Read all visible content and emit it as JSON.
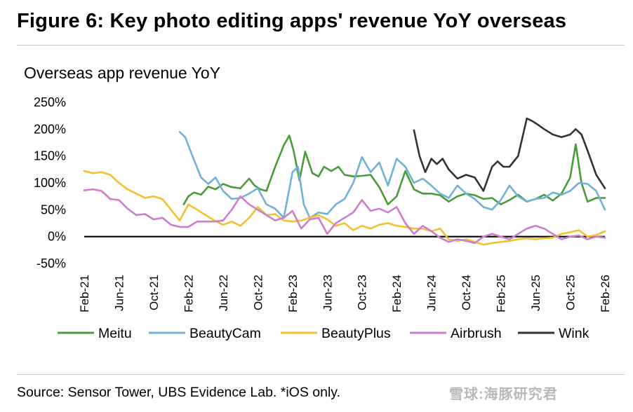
{
  "figure_title": "Figure 6: Key photo editing apps' revenue YoY overseas",
  "source_note": "Source: Sensor Tower, UBS Evidence Lab. *iOS only.",
  "watermark": "雪球:海豚研究君",
  "chart_data": {
    "type": "line",
    "title": "Overseas app revenue YoY",
    "xlabel": "",
    "ylabel": "",
    "x_range": [
      "2021-02",
      "2026-02"
    ],
    "x_ticks": [
      "Feb-21",
      "Jun-21",
      "Oct-21",
      "Feb-22",
      "Jun-22",
      "Oct-22",
      "Feb-23",
      "Jun-23",
      "Oct-23",
      "Feb-24",
      "Jun-24",
      "Oct-24",
      "Feb-25",
      "Jun-25",
      "Oct-25",
      "Feb-26"
    ],
    "y_ticks": [
      -50,
      0,
      50,
      100,
      150,
      200,
      250
    ],
    "y_tick_labels": [
      "-50%",
      "0%",
      "50%",
      "100%",
      "150%",
      "200%",
      "250%"
    ],
    "ylim": [
      -50,
      250
    ],
    "y_unit": "%",
    "zero_line": true,
    "grid": false,
    "legend_position": "bottom",
    "series": [
      {
        "name": "Meitu",
        "color": "#4a9c3a",
        "points": [
          [
            "2022-01-15",
            60
          ],
          [
            "2022-02-01",
            75
          ],
          [
            "2022-02-20",
            82
          ],
          [
            "2022-03-15",
            78
          ],
          [
            "2022-04-10",
            93
          ],
          [
            "2022-05-05",
            88
          ],
          [
            "2022-06-01",
            98
          ],
          [
            "2022-07-01",
            92
          ],
          [
            "2022-08-01",
            90
          ],
          [
            "2022-09-01",
            108
          ],
          [
            "2022-09-20",
            95
          ],
          [
            "2022-10-10",
            88
          ],
          [
            "2022-11-01",
            85
          ],
          [
            "2022-12-01",
            130
          ],
          [
            "2023-01-01",
            170
          ],
          [
            "2023-01-20",
            188
          ],
          [
            "2023-02-05",
            160
          ],
          [
            "2023-02-25",
            105
          ],
          [
            "2023-03-15",
            158
          ],
          [
            "2023-04-10",
            118
          ],
          [
            "2023-05-01",
            112
          ],
          [
            "2023-05-20",
            130
          ],
          [
            "2023-06-15",
            122
          ],
          [
            "2023-07-10",
            130
          ],
          [
            "2023-08-01",
            115
          ],
          [
            "2023-09-01",
            112
          ],
          [
            "2023-10-01",
            113
          ],
          [
            "2023-11-01",
            115
          ],
          [
            "2023-12-01",
            92
          ],
          [
            "2024-01-01",
            60
          ],
          [
            "2024-02-01",
            75
          ],
          [
            "2024-03-01",
            122
          ],
          [
            "2024-04-01",
            88
          ],
          [
            "2024-05-01",
            80
          ],
          [
            "2024-06-01",
            80
          ],
          [
            "2024-07-01",
            77
          ],
          [
            "2024-08-01",
            65
          ],
          [
            "2024-09-01",
            75
          ],
          [
            "2024-10-01",
            80
          ],
          [
            "2024-11-01",
            77
          ],
          [
            "2024-12-01",
            70
          ],
          [
            "2025-01-01",
            72
          ],
          [
            "2025-02-01",
            60
          ],
          [
            "2025-03-01",
            68
          ],
          [
            "2025-04-01",
            78
          ],
          [
            "2025-05-01",
            65
          ],
          [
            "2025-06-01",
            70
          ],
          [
            "2025-07-01",
            78
          ],
          [
            "2025-08-01",
            67
          ],
          [
            "2025-09-01",
            80
          ],
          [
            "2025-10-01",
            110
          ],
          [
            "2025-10-20",
            172
          ],
          [
            "2025-11-10",
            100
          ],
          [
            "2025-12-01",
            65
          ],
          [
            "2026-01-01",
            72
          ],
          [
            "2026-02-01",
            72
          ]
        ]
      },
      {
        "name": "BeautyCam",
        "color": "#6fb2d6",
        "points": [
          [
            "2022-01-01",
            195
          ],
          [
            "2022-01-20",
            185
          ],
          [
            "2022-02-15",
            150
          ],
          [
            "2022-03-15",
            110
          ],
          [
            "2022-04-10",
            98
          ],
          [
            "2022-05-05",
            110
          ],
          [
            "2022-06-01",
            85
          ],
          [
            "2022-07-01",
            70
          ],
          [
            "2022-08-01",
            72
          ],
          [
            "2022-09-01",
            80
          ],
          [
            "2022-10-01",
            90
          ],
          [
            "2022-11-01",
            60
          ],
          [
            "2022-12-01",
            52
          ],
          [
            "2023-01-01",
            35
          ],
          [
            "2023-02-01",
            120
          ],
          [
            "2023-02-20",
            130
          ],
          [
            "2023-03-10",
            60
          ],
          [
            "2023-04-01",
            35
          ],
          [
            "2023-05-01",
            45
          ],
          [
            "2023-06-01",
            42
          ],
          [
            "2023-07-01",
            60
          ],
          [
            "2023-08-01",
            70
          ],
          [
            "2023-09-01",
            100
          ],
          [
            "2023-10-01",
            148
          ],
          [
            "2023-11-01",
            120
          ],
          [
            "2023-12-01",
            138
          ],
          [
            "2024-01-01",
            95
          ],
          [
            "2024-02-01",
            145
          ],
          [
            "2024-03-01",
            130
          ],
          [
            "2024-04-01",
            100
          ],
          [
            "2024-05-01",
            108
          ],
          [
            "2024-06-01",
            95
          ],
          [
            "2024-07-01",
            80
          ],
          [
            "2024-08-01",
            72
          ],
          [
            "2024-09-01",
            95
          ],
          [
            "2024-10-01",
            80
          ],
          [
            "2024-11-01",
            70
          ],
          [
            "2024-12-01",
            55
          ],
          [
            "2025-01-01",
            50
          ],
          [
            "2025-02-01",
            68
          ],
          [
            "2025-03-01",
            95
          ],
          [
            "2025-04-01",
            75
          ],
          [
            "2025-05-01",
            65
          ],
          [
            "2025-06-01",
            70
          ],
          [
            "2025-07-01",
            72
          ],
          [
            "2025-08-01",
            82
          ],
          [
            "2025-09-01",
            78
          ],
          [
            "2025-10-01",
            85
          ],
          [
            "2025-11-01",
            100
          ],
          [
            "2025-12-01",
            98
          ],
          [
            "2026-01-01",
            85
          ],
          [
            "2026-02-01",
            50
          ]
        ]
      },
      {
        "name": "BeautyPlus",
        "color": "#f2c12e",
        "points": [
          [
            "2021-02-01",
            122
          ],
          [
            "2021-03-01",
            118
          ],
          [
            "2021-04-01",
            120
          ],
          [
            "2021-05-01",
            115
          ],
          [
            "2021-06-01",
            100
          ],
          [
            "2021-07-01",
            88
          ],
          [
            "2021-08-01",
            80
          ],
          [
            "2021-09-01",
            72
          ],
          [
            "2021-10-01",
            75
          ],
          [
            "2021-11-01",
            70
          ],
          [
            "2021-12-01",
            50
          ],
          [
            "2022-01-01",
            30
          ],
          [
            "2022-02-01",
            60
          ],
          [
            "2022-03-01",
            50
          ],
          [
            "2022-04-01",
            40
          ],
          [
            "2022-05-01",
            30
          ],
          [
            "2022-06-01",
            22
          ],
          [
            "2022-07-01",
            28
          ],
          [
            "2022-08-01",
            20
          ],
          [
            "2022-09-01",
            35
          ],
          [
            "2022-10-01",
            55
          ],
          [
            "2022-11-01",
            40
          ],
          [
            "2022-12-01",
            42
          ],
          [
            "2023-01-01",
            30
          ],
          [
            "2023-02-01",
            28
          ],
          [
            "2023-03-01",
            30
          ],
          [
            "2023-04-01",
            35
          ],
          [
            "2023-05-01",
            40
          ],
          [
            "2023-06-01",
            32
          ],
          [
            "2023-07-01",
            20
          ],
          [
            "2023-08-01",
            25
          ],
          [
            "2023-09-01",
            12
          ],
          [
            "2023-10-01",
            20
          ],
          [
            "2023-11-01",
            15
          ],
          [
            "2023-12-01",
            22
          ],
          [
            "2024-01-01",
            25
          ],
          [
            "2024-02-01",
            20
          ],
          [
            "2024-03-01",
            18
          ],
          [
            "2024-04-01",
            15
          ],
          [
            "2024-05-01",
            15
          ],
          [
            "2024-06-01",
            10
          ],
          [
            "2024-07-01",
            15
          ],
          [
            "2024-08-01",
            -5
          ],
          [
            "2024-09-01",
            -8
          ],
          [
            "2024-10-01",
            -5
          ],
          [
            "2024-11-01",
            -10
          ],
          [
            "2024-12-01",
            -15
          ],
          [
            "2025-01-01",
            -12
          ],
          [
            "2025-02-01",
            -10
          ],
          [
            "2025-03-01",
            -8
          ],
          [
            "2025-04-01",
            -5
          ],
          [
            "2025-05-01",
            -3
          ],
          [
            "2025-06-01",
            -5
          ],
          [
            "2025-07-01",
            -3
          ],
          [
            "2025-08-01",
            -2
          ],
          [
            "2025-09-01",
            5
          ],
          [
            "2025-10-01",
            8
          ],
          [
            "2025-11-01",
            12
          ],
          [
            "2025-12-01",
            0
          ],
          [
            "2026-01-01",
            3
          ],
          [
            "2026-02-01",
            10
          ]
        ]
      },
      {
        "name": "Airbrush",
        "color": "#cc7ecc",
        "points": [
          [
            "2021-02-01",
            86
          ],
          [
            "2021-03-01",
            88
          ],
          [
            "2021-04-01",
            85
          ],
          [
            "2021-05-01",
            70
          ],
          [
            "2021-06-01",
            68
          ],
          [
            "2021-07-01",
            52
          ],
          [
            "2021-08-01",
            40
          ],
          [
            "2021-09-01",
            42
          ],
          [
            "2021-10-01",
            32
          ],
          [
            "2021-11-01",
            35
          ],
          [
            "2021-12-01",
            22
          ],
          [
            "2022-01-01",
            18
          ],
          [
            "2022-02-01",
            18
          ],
          [
            "2022-03-01",
            28
          ],
          [
            "2022-04-01",
            28
          ],
          [
            "2022-05-01",
            28
          ],
          [
            "2022-06-01",
            30
          ],
          [
            "2022-07-01",
            50
          ],
          [
            "2022-08-01",
            75
          ],
          [
            "2022-09-01",
            60
          ],
          [
            "2022-10-01",
            50
          ],
          [
            "2022-11-01",
            40
          ],
          [
            "2022-12-01",
            30
          ],
          [
            "2023-01-01",
            35
          ],
          [
            "2023-02-01",
            48
          ],
          [
            "2023-03-01",
            15
          ],
          [
            "2023-04-01",
            32
          ],
          [
            "2023-05-01",
            35
          ],
          [
            "2023-06-01",
            5
          ],
          [
            "2023-07-01",
            25
          ],
          [
            "2023-08-01",
            35
          ],
          [
            "2023-09-01",
            45
          ],
          [
            "2023-10-01",
            68
          ],
          [
            "2023-11-01",
            48
          ],
          [
            "2023-12-01",
            52
          ],
          [
            "2024-01-01",
            45
          ],
          [
            "2024-02-01",
            55
          ],
          [
            "2024-03-01",
            25
          ],
          [
            "2024-04-01",
            5
          ],
          [
            "2024-05-01",
            20
          ],
          [
            "2024-06-01",
            10
          ],
          [
            "2024-07-01",
            -2
          ],
          [
            "2024-08-01",
            -10
          ],
          [
            "2024-09-01",
            -5
          ],
          [
            "2024-10-01",
            -8
          ],
          [
            "2024-11-01",
            -12
          ],
          [
            "2024-12-01",
            0
          ],
          [
            "2025-01-01",
            5
          ],
          [
            "2025-02-01",
            0
          ],
          [
            "2025-03-01",
            -5
          ],
          [
            "2025-04-01",
            5
          ],
          [
            "2025-05-01",
            15
          ],
          [
            "2025-06-01",
            20
          ],
          [
            "2025-07-01",
            15
          ],
          [
            "2025-08-01",
            5
          ],
          [
            "2025-09-01",
            -5
          ],
          [
            "2025-10-01",
            0
          ],
          [
            "2025-11-01",
            2
          ],
          [
            "2025-12-01",
            -5
          ],
          [
            "2026-01-01",
            0
          ],
          [
            "2026-02-01",
            -2
          ]
        ]
      },
      {
        "name": "Wink",
        "color": "#333333",
        "points": [
          [
            "2024-04-01",
            198
          ],
          [
            "2024-04-20",
            150
          ],
          [
            "2024-05-10",
            120
          ],
          [
            "2024-06-01",
            145
          ],
          [
            "2024-06-20",
            135
          ],
          [
            "2024-07-10",
            145
          ],
          [
            "2024-08-01",
            125
          ],
          [
            "2024-09-01",
            108
          ],
          [
            "2024-10-01",
            115
          ],
          [
            "2024-11-01",
            110
          ],
          [
            "2024-12-01",
            85
          ],
          [
            "2025-01-01",
            130
          ],
          [
            "2025-01-20",
            140
          ],
          [
            "2025-02-10",
            130
          ],
          [
            "2025-03-01",
            130
          ],
          [
            "2025-04-01",
            150
          ],
          [
            "2025-05-01",
            220
          ],
          [
            "2025-05-20",
            215
          ],
          [
            "2025-06-10",
            208
          ],
          [
            "2025-07-01",
            200
          ],
          [
            "2025-08-01",
            190
          ],
          [
            "2025-09-01",
            185
          ],
          [
            "2025-10-01",
            190
          ],
          [
            "2025-10-20",
            200
          ],
          [
            "2025-11-10",
            190
          ],
          [
            "2025-12-01",
            160
          ],
          [
            "2026-01-01",
            115
          ],
          [
            "2026-02-01",
            90
          ]
        ]
      }
    ]
  }
}
